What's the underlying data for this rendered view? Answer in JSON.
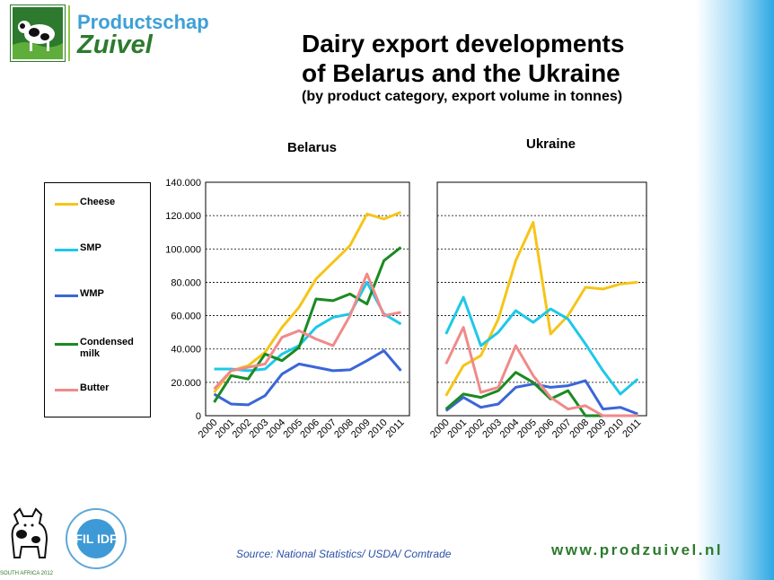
{
  "logo": {
    "line1": "Productschap",
    "line2": "Zuivel"
  },
  "header": {
    "title_line1": "Dairy export developments",
    "title_line2": "of Belarus and the Ukraine",
    "subtitle": "(by product category, export volume in tonnes)"
  },
  "footer": {
    "source": "Source: National Statistics/ USDA/ Comtrade",
    "url": "www.prodzuivel.nl",
    "cow_caption": "SOUTH AFRICA 2012",
    "fil_text": "FIL IDF"
  },
  "colors": {
    "cheese": "#f5c518",
    "smp": "#1ec8e8",
    "wmp": "#3a66d8",
    "condensed": "#1a8a22",
    "butter": "#f08a8a"
  },
  "chart_data": [
    {
      "type": "line",
      "title": "Belarus",
      "categories": [
        "2000",
        "2001",
        "2002",
        "2003",
        "2004",
        "2005",
        "2006",
        "2007",
        "2008",
        "2009",
        "2010",
        "2011"
      ],
      "ylim": [
        0,
        140000
      ],
      "y_ticks": [
        "0",
        "20.000",
        "40.000",
        "60.000",
        "80.000",
        "100.000",
        "120.000",
        "140.000"
      ],
      "grid": true,
      "series": [
        {
          "name": "Cheese",
          "key": "cheese",
          "values": [
            14000,
            27000,
            30000,
            38000,
            53000,
            65000,
            82000,
            92000,
            102000,
            121000,
            118000,
            122000
          ]
        },
        {
          "name": "SMP",
          "key": "smp",
          "values": [
            28000,
            28000,
            27000,
            28000,
            37000,
            42000,
            53000,
            59000,
            61000,
            80000,
            61000,
            55000
          ]
        },
        {
          "name": "WMP",
          "key": "wmp",
          "values": [
            13000,
            7000,
            6500,
            12000,
            25000,
            31000,
            29000,
            27000,
            27500,
            33000,
            39000,
            27000
          ]
        },
        {
          "name": "Condensed milk",
          "key": "condensed",
          "values": [
            8000,
            24000,
            22000,
            37000,
            33000,
            41000,
            70000,
            69000,
            73000,
            67000,
            93000,
            101000
          ]
        },
        {
          "name": "Butter",
          "key": "butter",
          "values": [
            16000,
            27000,
            29000,
            31000,
            47000,
            51000,
            46000,
            42000,
            60000,
            85000,
            60000,
            62000
          ]
        }
      ]
    },
    {
      "type": "line",
      "title": "Ukraine",
      "categories": [
        "2000",
        "2001",
        "2002",
        "2003",
        "2004",
        "2005",
        "2006",
        "2007",
        "2008",
        "2009",
        "2010",
        "2011"
      ],
      "ylim": [
        0,
        140000
      ],
      "grid": true,
      "series": [
        {
          "name": "Cheese",
          "key": "cheese",
          "values": [
            12000,
            30000,
            36000,
            58000,
            93000,
            116000,
            49000,
            60000,
            77000,
            76000,
            79000,
            80000
          ]
        },
        {
          "name": "SMP",
          "key": "smp",
          "values": [
            49000,
            71000,
            42000,
            50000,
            63000,
            56000,
            64000,
            58000,
            43000,
            27000,
            13000,
            22000
          ]
        },
        {
          "name": "WMP",
          "key": "wmp",
          "values": [
            3000,
            11000,
            5000,
            7000,
            17000,
            19000,
            17000,
            18000,
            21000,
            4000,
            5000,
            1000
          ]
        },
        {
          "name": "Condensed milk",
          "key": "condensed",
          "values": [
            4000,
            13000,
            11000,
            15000,
            26000,
            20000,
            10000,
            15000,
            0,
            0,
            0,
            0
          ]
        },
        {
          "name": "Butter",
          "key": "butter",
          "values": [
            31000,
            53000,
            14000,
            17000,
            42000,
            24000,
            11000,
            4000,
            6000,
            0,
            0,
            0
          ]
        }
      ]
    }
  ]
}
